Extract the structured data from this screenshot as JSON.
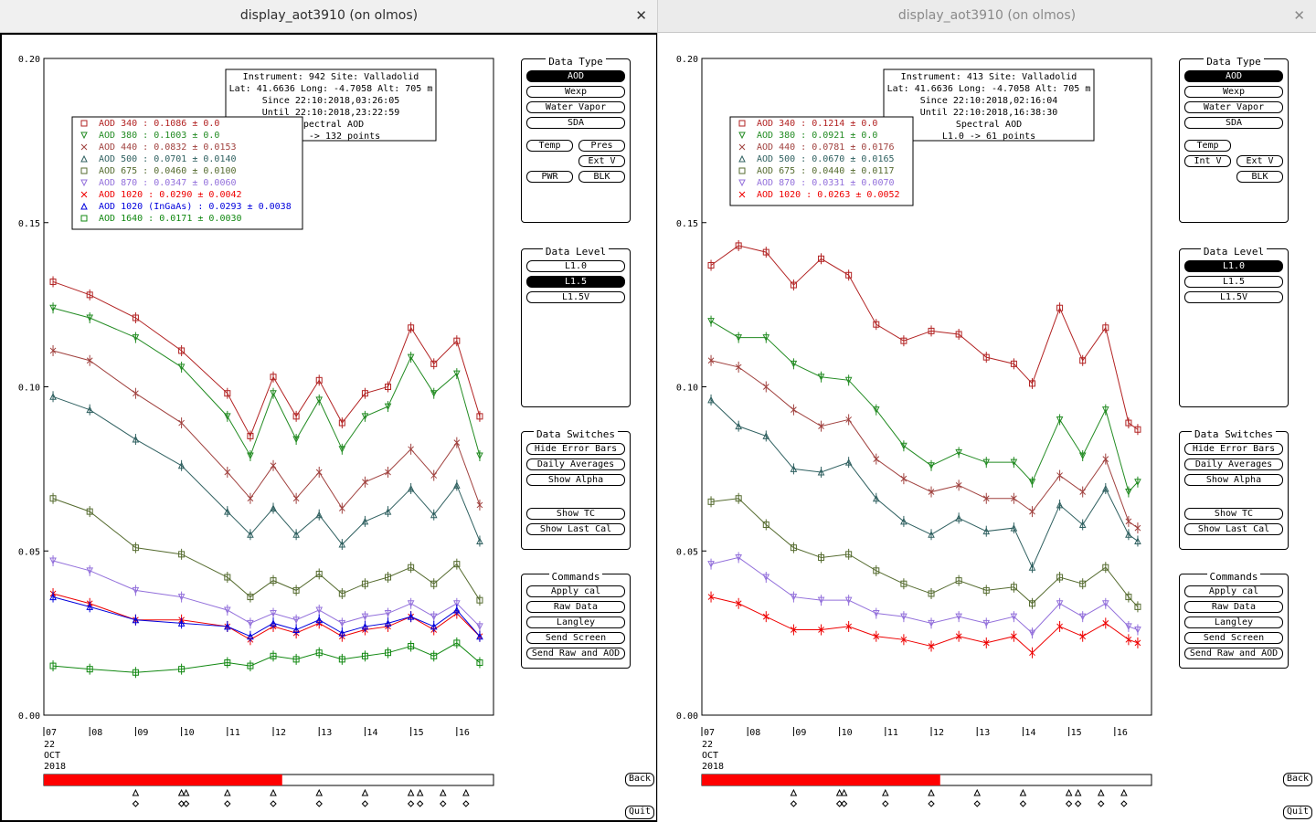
{
  "windows": [
    {
      "title": "display_aot3910 (on olmos)",
      "close_glyph": "✕",
      "info": [
        "Instrument: 942 Site: Valladolid",
        "Lat: 41.6636 Long: -4.7058 Alt: 705 m",
        "Since 22:10:2018,03:26:05",
        "Until 22:10:2018,23:22:59",
        "Spectral AOD",
        "L1.5 -> 132 points"
      ],
      "legend": [
        {
          "label": "AOD 340  : 0.1086 ± 0.0",
          "color": "#b22222"
        },
        {
          "label": "AOD 380  : 0.1003 ± 0.0",
          "color": "#228b22"
        },
        {
          "label": "AOD 440  : 0.0832 ± 0.0153",
          "color": "#a0413e"
        },
        {
          "label": "AOD 500  : 0.0701 ± 0.0140",
          "color": "#2f6060"
        },
        {
          "label": "AOD 675  : 0.0460 ± 0.0100",
          "color": "#556b2f"
        },
        {
          "label": "AOD 870  : 0.0347 ± 0.0060",
          "color": "#9370db"
        },
        {
          "label": "AOD 1020  : 0.0290 ± 0.0042",
          "color": "#ee0000"
        },
        {
          "label": "AOD 1020 (InGaAs)  : 0.0293 ± 0.0038",
          "color": "#0000dd"
        },
        {
          "label": "AOD 1640  : 0.0171 ± 0.0030",
          "color": "#118811"
        }
      ],
      "data_type": {
        "title": "Data Type",
        "buttons": [
          "AOD",
          "Wexp",
          "Water Vapor",
          "SDA"
        ],
        "selected": "AOD",
        "small": [
          "Temp",
          "Pres",
          "Ext V",
          "PWR",
          "BLK"
        ]
      },
      "data_level": {
        "title": "Data Level",
        "buttons": [
          "L1.0",
          "L1.5",
          "L1.5V"
        ],
        "selected": "L1.5"
      },
      "data_switches": {
        "title": "Data Switches",
        "buttons": [
          "Hide Error Bars",
          "Daily Averages",
          "Show Alpha",
          "Show TC",
          "Show Last Cal"
        ]
      },
      "commands": {
        "title": "Commands",
        "buttons": [
          "Apply cal",
          "Raw Data",
          "Langley",
          "Send Screen",
          "Send Raw and AOD"
        ]
      },
      "progress_fraction": 0.53,
      "back_label": "Back",
      "quit_label": "Quit"
    },
    {
      "title": "display_aot3910 (on olmos)",
      "close_glyph": "✕",
      "info": [
        "Instrument: 413 Site: Valladolid",
        "Lat: 41.6636 Long: -4.7058 Alt: 705 m",
        "Since 22:10:2018,02:16:04",
        "Until 22:10:2018,16:38:30",
        "Spectral AOD",
        "L1.0 -> 61 points"
      ],
      "legend": [
        {
          "label": "AOD 340  : 0.1214 ± 0.0",
          "color": "#b22222"
        },
        {
          "label": "AOD 380  : 0.0921 ± 0.0",
          "color": "#228b22"
        },
        {
          "label": "AOD 440  : 0.0781 ± 0.0176",
          "color": "#a0413e"
        },
        {
          "label": "AOD 500  : 0.0670 ± 0.0165",
          "color": "#2f6060"
        },
        {
          "label": "AOD 675  : 0.0440 ± 0.0117",
          "color": "#556b2f"
        },
        {
          "label": "AOD 870  : 0.0331 ± 0.0070",
          "color": "#9370db"
        },
        {
          "label": "AOD 1020  : 0.0263 ± 0.0052",
          "color": "#ee0000"
        }
      ],
      "data_type": {
        "title": "Data Type",
        "buttons": [
          "AOD",
          "Wexp",
          "Water Vapor",
          "SDA"
        ],
        "selected": "AOD",
        "small": [
          "Temp",
          "Int V",
          "Ext V",
          "BLK"
        ]
      },
      "data_level": {
        "title": "Data Level",
        "buttons": [
          "L1.0",
          "L1.5",
          "L1.5V"
        ],
        "selected": "L1.0"
      },
      "data_switches": {
        "title": "Data Switches",
        "buttons": [
          "Hide Error Bars",
          "Daily Averages",
          "Show Alpha",
          "Show TC",
          "Show Last Cal"
        ]
      },
      "commands": {
        "title": "Commands",
        "buttons": [
          "Apply cal",
          "Raw Data",
          "Langley",
          "Send Screen",
          "Send Raw and AOD"
        ]
      },
      "progress_fraction": 0.53,
      "back_label": "Back",
      "quit_label": "Quit"
    }
  ],
  "chart_data": [
    {
      "type": "line",
      "ylim": [
        0.0,
        0.2
      ],
      "yticks": [
        "0.00",
        "0.05",
        "0.10",
        "0.15",
        "0.20"
      ],
      "xlim": [
        7.0,
        16.8
      ],
      "xticks": [
        "07",
        "08",
        "09",
        "10",
        "11",
        "12",
        "13",
        "14",
        "15",
        "16"
      ],
      "xlabel_lines": [
        "22",
        "OCT",
        "2018"
      ],
      "grid": false,
      "series": [
        {
          "name": "AOD 340",
          "color": "#b22222",
          "marker": "square",
          "x": [
            7.2,
            8.0,
            9.0,
            10.0,
            11.0,
            11.5,
            12.0,
            12.5,
            13.0,
            13.5,
            14.0,
            14.5,
            15.0,
            15.5,
            16.0,
            16.5
          ],
          "y": [
            0.132,
            0.128,
            0.121,
            0.111,
            0.098,
            0.085,
            0.103,
            0.091,
            0.102,
            0.089,
            0.098,
            0.1,
            0.118,
            0.107,
            0.114,
            0.091
          ]
        },
        {
          "name": "AOD 380",
          "color": "#228b22",
          "marker": "triangle-down",
          "x": [
            7.2,
            8.0,
            9.0,
            10.0,
            11.0,
            11.5,
            12.0,
            12.5,
            13.0,
            13.5,
            14.0,
            14.5,
            15.0,
            15.5,
            16.0,
            16.5
          ],
          "y": [
            0.124,
            0.121,
            0.115,
            0.106,
            0.091,
            0.079,
            0.098,
            0.084,
            0.096,
            0.081,
            0.091,
            0.094,
            0.109,
            0.098,
            0.104,
            0.079
          ]
        },
        {
          "name": "AOD 440",
          "color": "#a0413e",
          "marker": "x",
          "x": [
            7.2,
            8.0,
            9.0,
            10.0,
            11.0,
            11.5,
            12.0,
            12.5,
            13.0,
            13.5,
            14.0,
            14.5,
            15.0,
            15.5,
            16.0,
            16.5
          ],
          "y": [
            0.111,
            0.108,
            0.098,
            0.089,
            0.074,
            0.066,
            0.076,
            0.066,
            0.074,
            0.063,
            0.071,
            0.074,
            0.081,
            0.073,
            0.083,
            0.064
          ]
        },
        {
          "name": "AOD 500",
          "color": "#2f6060",
          "marker": "triangle-up",
          "x": [
            7.2,
            8.0,
            9.0,
            10.0,
            11.0,
            11.5,
            12.0,
            12.5,
            13.0,
            13.5,
            14.0,
            14.5,
            15.0,
            15.5,
            16.0,
            16.5
          ],
          "y": [
            0.097,
            0.093,
            0.084,
            0.076,
            0.062,
            0.055,
            0.063,
            0.055,
            0.061,
            0.052,
            0.059,
            0.062,
            0.069,
            0.061,
            0.07,
            0.053
          ]
        },
        {
          "name": "AOD 675",
          "color": "#556b2f",
          "marker": "square",
          "x": [
            7.2,
            8.0,
            9.0,
            10.0,
            11.0,
            11.5,
            12.0,
            12.5,
            13.0,
            13.5,
            14.0,
            14.5,
            15.0,
            15.5,
            16.0,
            16.5
          ],
          "y": [
            0.066,
            0.062,
            0.051,
            0.049,
            0.042,
            0.036,
            0.041,
            0.038,
            0.043,
            0.037,
            0.04,
            0.042,
            0.045,
            0.04,
            0.046,
            0.035
          ]
        },
        {
          "name": "AOD 870",
          "color": "#9370db",
          "marker": "triangle-down",
          "x": [
            7.2,
            8.0,
            9.0,
            10.0,
            11.0,
            11.5,
            12.0,
            12.5,
            13.0,
            13.5,
            14.0,
            14.5,
            15.0,
            15.5,
            16.0,
            16.5
          ],
          "y": [
            0.047,
            0.044,
            0.038,
            0.036,
            0.032,
            0.028,
            0.031,
            0.029,
            0.032,
            0.028,
            0.03,
            0.031,
            0.034,
            0.03,
            0.034,
            0.027
          ]
        },
        {
          "name": "AOD 1020",
          "color": "#ee0000",
          "marker": "x",
          "x": [
            7.2,
            8.0,
            9.0,
            10.0,
            11.0,
            11.5,
            12.0,
            12.5,
            13.0,
            13.5,
            14.0,
            14.5,
            15.0,
            15.5,
            16.0,
            16.5
          ],
          "y": [
            0.037,
            0.034,
            0.029,
            0.029,
            0.027,
            0.023,
            0.027,
            0.025,
            0.028,
            0.024,
            0.026,
            0.027,
            0.03,
            0.026,
            0.031,
            0.024
          ]
        },
        {
          "name": "AOD 1020 (InGaAs)",
          "color": "#0000dd",
          "marker": "triangle-up",
          "x": [
            7.2,
            8.0,
            9.0,
            10.0,
            11.0,
            11.5,
            12.0,
            12.5,
            13.0,
            13.5,
            14.0,
            14.5,
            15.0,
            15.5,
            16.0,
            16.5
          ],
          "y": [
            0.036,
            0.033,
            0.029,
            0.028,
            0.027,
            0.024,
            0.028,
            0.026,
            0.029,
            0.025,
            0.027,
            0.028,
            0.03,
            0.027,
            0.032,
            0.024
          ]
        },
        {
          "name": "AOD 1640",
          "color": "#118811",
          "marker": "square",
          "x": [
            7.2,
            8.0,
            9.0,
            10.0,
            11.0,
            11.5,
            12.0,
            12.5,
            13.0,
            13.5,
            14.0,
            14.5,
            15.0,
            15.5,
            16.0,
            16.5
          ],
          "y": [
            0.015,
            0.014,
            0.013,
            0.014,
            0.016,
            0.015,
            0.018,
            0.017,
            0.019,
            0.017,
            0.018,
            0.019,
            0.021,
            0.018,
            0.022,
            0.016
          ]
        }
      ]
    },
    {
      "type": "line",
      "ylim": [
        0.0,
        0.2
      ],
      "yticks": [
        "0.00",
        "0.05",
        "0.10",
        "0.15",
        "0.20"
      ],
      "xlim": [
        7.0,
        16.8
      ],
      "xticks": [
        "07",
        "08",
        "09",
        "10",
        "11",
        "12",
        "13",
        "14",
        "15",
        "16"
      ],
      "xlabel_lines": [
        "22",
        "OCT",
        "2018"
      ],
      "grid": false,
      "series": [
        {
          "name": "AOD 340",
          "color": "#b22222",
          "marker": "square",
          "x": [
            7.2,
            7.8,
            8.4,
            9.0,
            9.6,
            10.2,
            10.8,
            11.4,
            12.0,
            12.6,
            13.2,
            13.8,
            14.2,
            14.8,
            15.3,
            15.8,
            16.3,
            16.5
          ],
          "y": [
            0.137,
            0.143,
            0.141,
            0.131,
            0.139,
            0.134,
            0.119,
            0.114,
            0.117,
            0.116,
            0.109,
            0.107,
            0.101,
            0.124,
            0.108,
            0.118,
            0.089,
            0.087
          ]
        },
        {
          "name": "AOD 380",
          "color": "#228b22",
          "marker": "triangle-down",
          "x": [
            7.2,
            7.8,
            8.4,
            9.0,
            9.6,
            10.2,
            10.8,
            11.4,
            12.0,
            12.6,
            13.2,
            13.8,
            14.2,
            14.8,
            15.3,
            15.8,
            16.3,
            16.5
          ],
          "y": [
            0.12,
            0.115,
            0.115,
            0.107,
            0.103,
            0.102,
            0.093,
            0.082,
            0.076,
            0.08,
            0.077,
            0.077,
            0.071,
            0.09,
            0.079,
            0.093,
            0.068,
            0.071
          ]
        },
        {
          "name": "AOD 440",
          "color": "#a0413e",
          "marker": "x",
          "x": [
            7.2,
            7.8,
            8.4,
            9.0,
            9.6,
            10.2,
            10.8,
            11.4,
            12.0,
            12.6,
            13.2,
            13.8,
            14.2,
            14.8,
            15.3,
            15.8,
            16.3,
            16.5
          ],
          "y": [
            0.108,
            0.106,
            0.1,
            0.093,
            0.088,
            0.09,
            0.078,
            0.072,
            0.068,
            0.07,
            0.066,
            0.066,
            0.062,
            0.073,
            0.068,
            0.078,
            0.059,
            0.057
          ]
        },
        {
          "name": "AOD 500",
          "color": "#2f6060",
          "marker": "triangle-up",
          "x": [
            7.2,
            7.8,
            8.4,
            9.0,
            9.6,
            10.2,
            10.8,
            11.4,
            12.0,
            12.6,
            13.2,
            13.8,
            14.2,
            14.8,
            15.3,
            15.8,
            16.3,
            16.5
          ],
          "y": [
            0.096,
            0.088,
            0.085,
            0.075,
            0.074,
            0.077,
            0.066,
            0.059,
            0.055,
            0.06,
            0.056,
            0.057,
            0.045,
            0.064,
            0.058,
            0.069,
            0.055,
            0.053
          ]
        },
        {
          "name": "AOD 675",
          "color": "#556b2f",
          "marker": "square",
          "x": [
            7.2,
            7.8,
            8.4,
            9.0,
            9.6,
            10.2,
            10.8,
            11.4,
            12.0,
            12.6,
            13.2,
            13.8,
            14.2,
            14.8,
            15.3,
            15.8,
            16.3,
            16.5
          ],
          "y": [
            0.065,
            0.066,
            0.058,
            0.051,
            0.048,
            0.049,
            0.044,
            0.04,
            0.037,
            0.041,
            0.038,
            0.039,
            0.034,
            0.042,
            0.04,
            0.045,
            0.036,
            0.033
          ]
        },
        {
          "name": "AOD 870",
          "color": "#9370db",
          "marker": "triangle-down",
          "x": [
            7.2,
            7.8,
            8.4,
            9.0,
            9.6,
            10.2,
            10.8,
            11.4,
            12.0,
            12.6,
            13.2,
            13.8,
            14.2,
            14.8,
            15.3,
            15.8,
            16.3,
            16.5
          ],
          "y": [
            0.046,
            0.048,
            0.042,
            0.036,
            0.035,
            0.035,
            0.031,
            0.03,
            0.028,
            0.03,
            0.028,
            0.03,
            0.025,
            0.034,
            0.03,
            0.034,
            0.027,
            0.026
          ]
        },
        {
          "name": "AOD 1020",
          "color": "#ee0000",
          "marker": "x",
          "x": [
            7.2,
            7.8,
            8.4,
            9.0,
            9.6,
            10.2,
            10.8,
            11.4,
            12.0,
            12.6,
            13.2,
            13.8,
            14.2,
            14.8,
            15.3,
            15.8,
            16.3,
            16.5
          ],
          "y": [
            0.036,
            0.034,
            0.03,
            0.026,
            0.026,
            0.027,
            0.024,
            0.023,
            0.021,
            0.024,
            0.022,
            0.024,
            0.019,
            0.027,
            0.024,
            0.028,
            0.023,
            0.022
          ]
        }
      ]
    }
  ]
}
